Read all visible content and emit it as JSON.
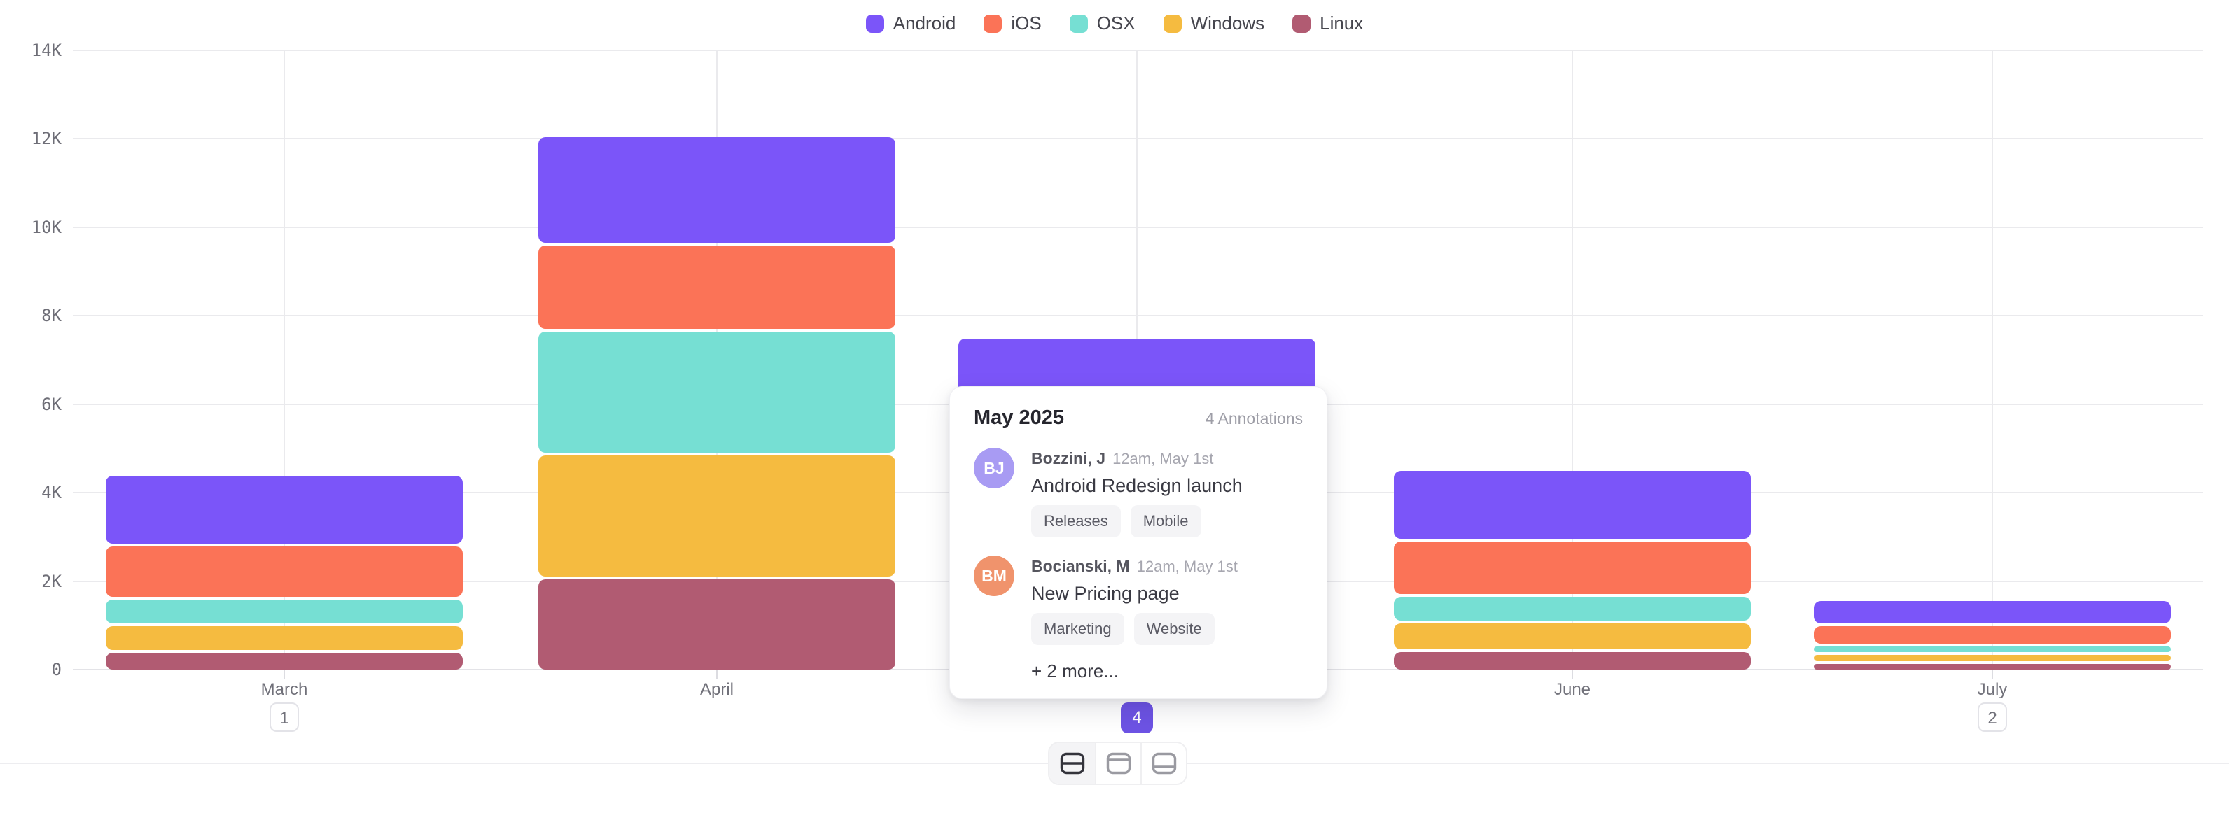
{
  "page": {
    "background": "#FFFFFF"
  },
  "legend": {
    "items": [
      {
        "label": "Android",
        "color": "#7B55F9"
      },
      {
        "label": "iOS",
        "color": "#FB7357"
      },
      {
        "label": "OSX",
        "color": "#76DFD3"
      },
      {
        "label": "Windows",
        "color": "#F5BB40"
      },
      {
        "label": "Linux",
        "color": "#B15B72"
      }
    ]
  },
  "chart_data": {
    "type": "bar",
    "stacked": true,
    "title": "",
    "xlabel": "",
    "ylabel": "",
    "categories": [
      "March",
      "April",
      "May",
      "June",
      "July"
    ],
    "series": [
      {
        "name": "Android",
        "color": "#7B55F9",
        "values": [
          1600,
          2450,
          2100,
          1600,
          580
        ]
      },
      {
        "name": "iOS",
        "color": "#FB7357",
        "values": [
          1200,
          1950,
          1600,
          1250,
          450
        ]
      },
      {
        "name": "OSX",
        "color": "#76DFD3",
        "values": [
          600,
          2800,
          1700,
          600,
          190
        ]
      },
      {
        "name": "Windows",
        "color": "#F5BB40",
        "values": [
          600,
          2800,
          1500,
          650,
          210
        ]
      },
      {
        "name": "Linux",
        "color": "#B15B72",
        "values": [
          450,
          2100,
          650,
          460,
          190
        ]
      }
    ],
    "ylim": [
      0,
      14000
    ],
    "y_ticks": [
      "0",
      "2K",
      "4K",
      "6K",
      "8K",
      "10K",
      "12K",
      "14K"
    ],
    "grid": true,
    "legend_position": "top"
  },
  "x_axis": {
    "months": [
      {
        "label": "March",
        "badge": "1",
        "selected": false
      },
      {
        "label": "April",
        "badge": null,
        "selected": false
      },
      {
        "label": "May",
        "badge": "4",
        "selected": true
      },
      {
        "label": "June",
        "badge": null,
        "selected": false
      },
      {
        "label": "July",
        "badge": "2",
        "selected": false
      }
    ]
  },
  "popup": {
    "title": "May 2025",
    "count_label": "4 Annotations",
    "entries": [
      {
        "initials": "BJ",
        "avatar_color": "#A89BF3",
        "author": "Bozzini, J",
        "timestamp": "12am, May 1st",
        "title": "Android Redesign launch",
        "tags": [
          "Releases",
          "Mobile"
        ]
      },
      {
        "initials": "BM",
        "avatar_color": "#F0936C",
        "author": "Bocianski, M",
        "timestamp": "12am, May 1st",
        "title": "New Pricing page",
        "tags": [
          "Marketing",
          "Website"
        ]
      }
    ],
    "more_label": "+ 2 more..."
  },
  "footer": {
    "buttons": [
      {
        "icon": "split-row",
        "selected": true
      },
      {
        "icon": "row-top",
        "selected": false
      },
      {
        "icon": "row-bottom",
        "selected": false
      }
    ]
  },
  "colors": {
    "accent": "#6D53E4",
    "grid": "#EAEAED",
    "axis_text": "#71717A",
    "divider": "#EDEDF0"
  }
}
